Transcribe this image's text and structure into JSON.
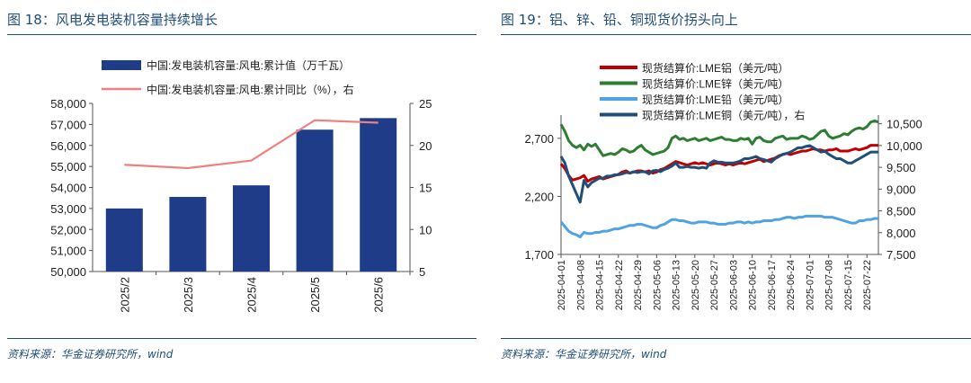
{
  "left": {
    "title": "图 18：风电发电装机容量持续增长",
    "source": "资料来源：华金证券研究所，wind",
    "chart_data": {
      "type": "bar",
      "categories": [
        "2025/2",
        "2025/3",
        "2025/4",
        "2025/5",
        "2025/6"
      ],
      "series": [
        {
          "name": "中国:发电装机容量:风电:累计值（万千瓦）",
          "type": "bar",
          "axis": "left",
          "color": "#1f3c88",
          "values": [
            53000,
            53550,
            54100,
            56750,
            57300
          ]
        },
        {
          "name": "中国:发电装机容量:风电:累计同比（%），右",
          "type": "line",
          "axis": "right",
          "color": "#f08080",
          "values": [
            17.7,
            17.3,
            18.2,
            23.0,
            22.7
          ]
        }
      ],
      "ylim": [
        50000,
        58000
      ],
      "yticks": [
        "50,000",
        "51,000",
        "52,000",
        "53,000",
        "54,000",
        "55,000",
        "56,000",
        "57,000",
        "58,000"
      ],
      "y2lim": [
        5,
        25
      ],
      "y2ticks": [
        "5",
        "10",
        "15",
        "20",
        "25"
      ],
      "legend": "top",
      "grid": false
    }
  },
  "right": {
    "title": "图 19：铝、锌、铅、铜现货价拐头向上",
    "source": "资料来源：华金证券研究所，wind",
    "chart_data": {
      "type": "line",
      "x": [
        "2025-04-01",
        "2025-04-02",
        "2025-04-03",
        "2025-04-04",
        "2025-04-07",
        "2025-04-08",
        "2025-04-09",
        "2025-04-10",
        "2025-04-11",
        "2025-04-14",
        "2025-04-15",
        "2025-04-16",
        "2025-04-17",
        "2025-04-18",
        "2025-04-21",
        "2025-04-22",
        "2025-04-23",
        "2025-04-24",
        "2025-04-25",
        "2025-04-28",
        "2025-04-29",
        "2025-04-30",
        "2025-05-01",
        "2025-05-02",
        "2025-05-05",
        "2025-05-06",
        "2025-05-07",
        "2025-05-08",
        "2025-05-09",
        "2025-05-12",
        "2025-05-13",
        "2025-05-14",
        "2025-05-15",
        "2025-05-16",
        "2025-05-19",
        "2025-05-20",
        "2025-05-21",
        "2025-05-22",
        "2025-05-23",
        "2025-05-26",
        "2025-05-27",
        "2025-05-28",
        "2025-05-29",
        "2025-05-30",
        "2025-06-02",
        "2025-06-03",
        "2025-06-04",
        "2025-06-05",
        "2025-06-06",
        "2025-06-09",
        "2025-06-10",
        "2025-06-11",
        "2025-06-12",
        "2025-06-13",
        "2025-06-16",
        "2025-06-17",
        "2025-06-18",
        "2025-06-19",
        "2025-06-20",
        "2025-06-23",
        "2025-06-24",
        "2025-06-25",
        "2025-06-26",
        "2025-06-27",
        "2025-06-30",
        "2025-07-01",
        "2025-07-02",
        "2025-07-03",
        "2025-07-04",
        "2025-07-07",
        "2025-07-08",
        "2025-07-09",
        "2025-07-10",
        "2025-07-11",
        "2025-07-14",
        "2025-07-15",
        "2025-07-16",
        "2025-07-17",
        "2025-07-18",
        "2025-07-21",
        "2025-07-22",
        "2025-07-23",
        "2025-07-24",
        "2025-07-25"
      ],
      "x_tick_labels": [
        "2025-04-01",
        "2025-04-08",
        "2025-04-15",
        "2025-04-22",
        "2025-04-29",
        "2025-05-06",
        "2025-05-13",
        "2025-05-20",
        "2025-05-27",
        "2025-06-03",
        "2025-06-10",
        "2025-06-17",
        "2025-06-24",
        "2025-07-01",
        "2025-07-08",
        "2025-07-15",
        "2025-07-22"
      ],
      "series": [
        {
          "name": "现货结算价:LME铝（美元/吨）",
          "axis": "left",
          "color": "#c00000",
          "values": [
            2480,
            2440,
            2380,
            2340,
            2350,
            2360,
            2380,
            2330,
            2350,
            2360,
            2370,
            2350,
            2360,
            2370,
            2380,
            2390,
            2410,
            2420,
            2400,
            2410,
            2420,
            2420,
            2410,
            2420,
            2400,
            2410,
            2430,
            2440,
            2460,
            2480,
            2500,
            2490,
            2480,
            2470,
            2480,
            2490,
            2480,
            2490,
            2480,
            2470,
            2480,
            2490,
            2480,
            2470,
            2480,
            2470,
            2480,
            2490,
            2480,
            2490,
            2500,
            2510,
            2520,
            2500,
            2510,
            2520,
            2530,
            2550,
            2560,
            2570,
            2560,
            2570,
            2580,
            2590,
            2590,
            2600,
            2610,
            2600,
            2600,
            2590,
            2600,
            2600,
            2610,
            2590,
            2590,
            2590,
            2600,
            2610,
            2600,
            2610,
            2620,
            2640,
            2640,
            2640
          ]
        },
        {
          "name": "现货结算价:LME锌（美元/吨）",
          "axis": "left",
          "color": "#2e7d32",
          "values": [
            2820,
            2760,
            2680,
            2640,
            2620,
            2640,
            2600,
            2650,
            2630,
            2650,
            2600,
            2550,
            2560,
            2570,
            2560,
            2580,
            2610,
            2600,
            2580,
            2590,
            2620,
            2640,
            2600,
            2580,
            2560,
            2570,
            2580,
            2590,
            2620,
            2700,
            2720,
            2690,
            2700,
            2680,
            2690,
            2700,
            2680,
            2690,
            2700,
            2680,
            2690,
            2700,
            2710,
            2690,
            2690,
            2680,
            2680,
            2700,
            2690,
            2700,
            2650,
            2700,
            2710,
            2680,
            2670,
            2670,
            2700,
            2710,
            2720,
            2690,
            2700,
            2700,
            2700,
            2720,
            2710,
            2690,
            2700,
            2730,
            2760,
            2770,
            2720,
            2700,
            2710,
            2720,
            2740,
            2730,
            2760,
            2780,
            2790,
            2780,
            2800,
            2840,
            2850,
            2840
          ]
        },
        {
          "name": "现货结算价:LME铅（美元/吨）",
          "axis": "left",
          "color": "#4fa3e0",
          "values": [
            1980,
            1940,
            1900,
            1880,
            1870,
            1850,
            1890,
            1880,
            1880,
            1890,
            1890,
            1900,
            1900,
            1910,
            1920,
            1920,
            1930,
            1940,
            1950,
            1950,
            1960,
            1960,
            1950,
            1940,
            1930,
            1930,
            1950,
            1960,
            1980,
            2000,
            2000,
            1990,
            1990,
            1980,
            1970,
            1970,
            1980,
            1980,
            1980,
            1970,
            1970,
            1960,
            1960,
            1960,
            1970,
            1970,
            1980,
            1980,
            1970,
            1980,
            1970,
            1980,
            1980,
            1990,
            1990,
            1990,
            2000,
            2000,
            2010,
            2020,
            2020,
            2010,
            2020,
            2020,
            2030,
            2030,
            2030,
            2030,
            2030,
            2020,
            2020,
            2020,
            2010,
            2000,
            1990,
            1980,
            1970,
            1970,
            1990,
            1990,
            2000,
            2000,
            2010,
            2010
          ]
        },
        {
          "name": "现货结算价:LME铜（美元/吨），右",
          "axis": "right",
          "color": "#1f4e79",
          "values": [
            9750,
            9600,
            9300,
            9100,
            8900,
            8700,
            9200,
            9050,
            9150,
            9200,
            9250,
            9250,
            9300,
            9300,
            9330,
            9330,
            9350,
            9380,
            9370,
            9400,
            9380,
            9400,
            9400,
            9350,
            9420,
            9430,
            9400,
            9450,
            9480,
            9530,
            9600,
            9500,
            9500,
            9520,
            9500,
            9500,
            9480,
            9500,
            9480,
            9600,
            9650,
            9620,
            9620,
            9600,
            9600,
            9600,
            9620,
            9650,
            9700,
            9700,
            9720,
            9750,
            9700,
            9680,
            9650,
            9620,
            9700,
            9750,
            9800,
            9820,
            9850,
            9900,
            9950,
            9950,
            9980,
            10000,
            9950,
            9900,
            9850,
            9870,
            9800,
            9750,
            9700,
            9700,
            9650,
            9600,
            9600,
            9650,
            9700,
            9750,
            9800,
            9850,
            9850,
            9850
          ]
        }
      ],
      "ylim": [
        1700,
        2900
      ],
      "yticks": [
        "1,700",
        "2,200",
        "2,700"
      ],
      "y2lim": [
        7500,
        10700
      ],
      "y2ticks": [
        "7,500",
        "8,000",
        "8,500",
        "9,000",
        "9,500",
        "10,000",
        "10,500"
      ],
      "legend": "top",
      "grid": false
    }
  }
}
